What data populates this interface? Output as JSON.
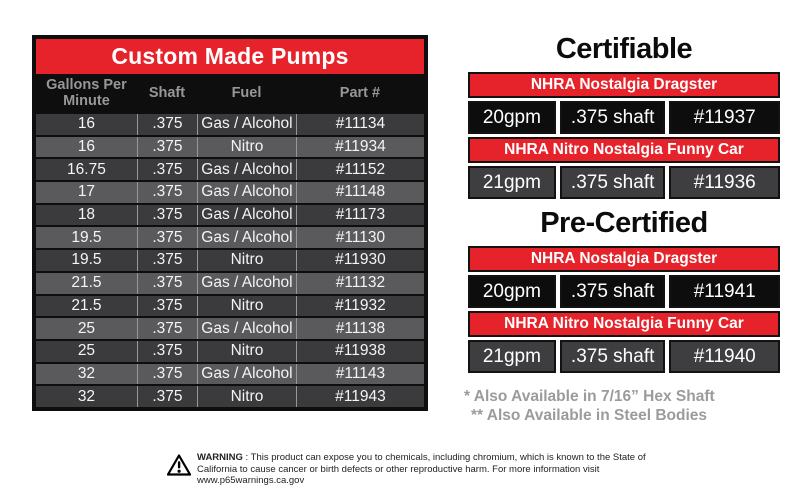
{
  "left_table": {
    "title": "Custom Made Pumps",
    "headers": [
      "Gallons Per Minute",
      "Shaft",
      "Fuel",
      "Part #"
    ],
    "rows": [
      [
        "16",
        ".375",
        "Gas / Alcohol",
        "#11134"
      ],
      [
        "16",
        ".375",
        "Nitro",
        "#11934"
      ],
      [
        "16.75",
        ".375",
        "Gas / Alcohol",
        "#11152"
      ],
      [
        "17",
        ".375",
        "Gas / Alcohol",
        "#11148"
      ],
      [
        "18",
        ".375",
        "Gas / Alcohol",
        "#11173"
      ],
      [
        "19.5",
        ".375",
        "Gas / Alcohol",
        "#11130"
      ],
      [
        "19.5",
        ".375",
        "Nitro",
        "#11930"
      ],
      [
        "21.5",
        ".375",
        "Gas / Alcohol",
        "#11132"
      ],
      [
        "21.5",
        ".375",
        "Nitro",
        "#11932"
      ],
      [
        "25",
        ".375",
        "Gas / Alcohol",
        "#11138"
      ],
      [
        "25",
        ".375",
        "Nitro",
        "#11938"
      ],
      [
        "32",
        ".375",
        "Gas / Alcohol",
        "#11143"
      ],
      [
        "32",
        ".375",
        "Nitro",
        "#11943"
      ]
    ]
  },
  "right": {
    "sections": [
      {
        "title": "Certifiable",
        "entries": [
          {
            "category": "NHRA Nostalgia Dragster",
            "cells": [
              "20gpm",
              ".375 shaft",
              "#11937"
            ],
            "tone": "black"
          },
          {
            "category": "NHRA Nitro Nostalgia Funny Car",
            "cells": [
              "21gpm",
              ".375 shaft",
              "#11936"
            ],
            "tone": "gray"
          }
        ]
      },
      {
        "title": "Pre-Certified",
        "entries": [
          {
            "category": "NHRA Nostalgia Dragster",
            "cells": [
              "20gpm",
              ".375 shaft",
              "#11941"
            ],
            "tone": "black"
          },
          {
            "category": "NHRA Nitro Nostalgia Funny Car",
            "cells": [
              "21gpm",
              ".375 shaft",
              "#11940"
            ],
            "tone": "gray"
          }
        ]
      }
    ],
    "footnotes": [
      "* Also Available in 7/16” Hex Shaft",
      "** Also Available in Steel Bodies"
    ]
  },
  "warning": {
    "label": "WARNING",
    "text": " : This product can expose you to chemicals, including chromium, which is known to the State of California to cause cancer or birth defects or other reproductive harm. For more information visit www.p65warnings.ca.gov"
  },
  "colors": {
    "accent_red": "#e6232b",
    "row_dark": "#3b3b3d",
    "row_light": "#5a5a5c",
    "cell_black": "#0d0d0e",
    "cell_gray": "#3e3e40",
    "header_text_gray": "#97979a",
    "footnote_gray": "#9b9b9d"
  }
}
